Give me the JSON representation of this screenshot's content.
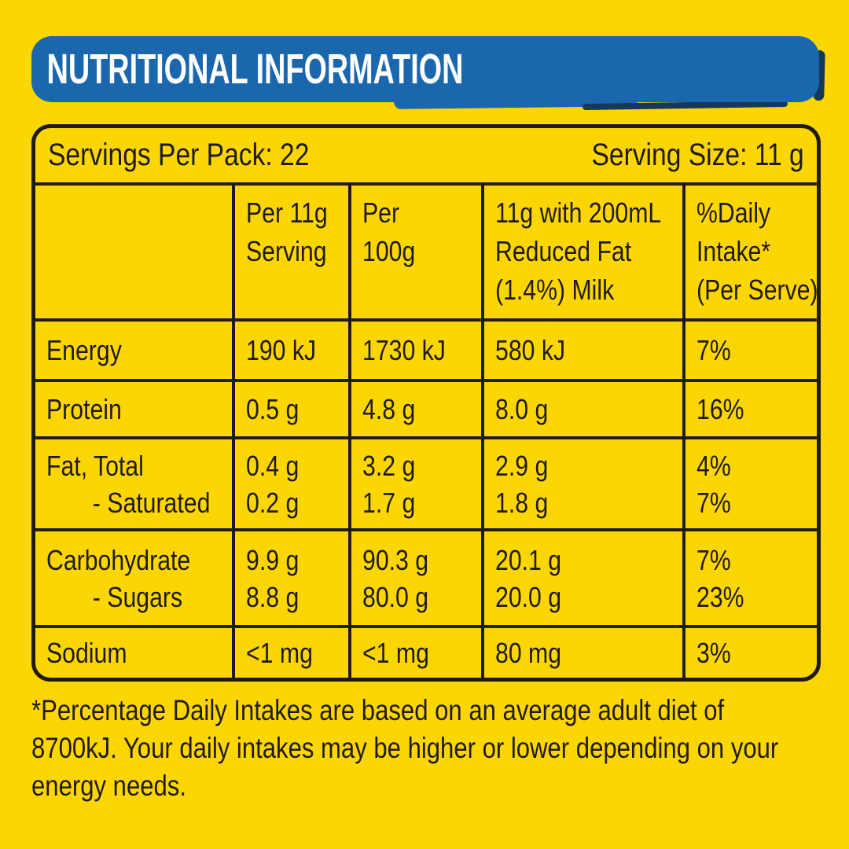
{
  "colors": {
    "yellow": "#FCD603",
    "blue": "#1A67AE",
    "navy": "#16385A",
    "ink": "#201B12",
    "banner_text": "#FFFFFF"
  },
  "banner": {
    "title": "NUTRITIONAL INFORMATION"
  },
  "summary": {
    "servings_per_pack": "Servings Per Pack: 22",
    "serving_size": "Serving Size: 11 g"
  },
  "columns": {
    "nutrient": {
      "lines": [
        ""
      ]
    },
    "per_serving": {
      "lines": [
        "Per 11g",
        "Serving"
      ]
    },
    "per_100g": {
      "lines": [
        "Per",
        "100g"
      ]
    },
    "with_milk": {
      "lines": [
        "11g with 200mL",
        "Reduced Fat",
        "(1.4%) Milk"
      ]
    },
    "daily_intake": {
      "lines": [
        "%Daily",
        "Intake*",
        "(Per Serve)"
      ]
    }
  },
  "rows": [
    {
      "label": {
        "lines": [
          "Energy"
        ]
      },
      "per_serving": {
        "lines": [
          "190 kJ"
        ]
      },
      "per_100g": {
        "lines": [
          "1730 kJ"
        ]
      },
      "with_milk": {
        "lines": [
          "580 kJ"
        ]
      },
      "daily_intake": {
        "lines": [
          "7%"
        ]
      }
    },
    {
      "label": {
        "lines": [
          "Protein"
        ]
      },
      "per_serving": {
        "lines": [
          "0.5 g"
        ]
      },
      "per_100g": {
        "lines": [
          "4.8 g"
        ]
      },
      "with_milk": {
        "lines": [
          "8.0 g"
        ]
      },
      "daily_intake": {
        "lines": [
          "16%"
        ]
      }
    },
    {
      "label": {
        "lines": [
          "Fat, Total",
          "- Saturated"
        ]
      },
      "per_serving": {
        "lines": [
          "0.4 g",
          "0.2 g"
        ]
      },
      "per_100g": {
        "lines": [
          "3.2 g",
          "1.7 g"
        ]
      },
      "with_milk": {
        "lines": [
          "2.9 g",
          "1.8 g"
        ]
      },
      "daily_intake": {
        "lines": [
          "4%",
          "7%"
        ]
      }
    },
    {
      "label": {
        "lines": [
          "Carbohydrate",
          "- Sugars"
        ]
      },
      "per_serving": {
        "lines": [
          "9.9 g",
          "8.8 g"
        ]
      },
      "per_100g": {
        "lines": [
          "90.3 g",
          "80.0 g"
        ]
      },
      "with_milk": {
        "lines": [
          "20.1 g",
          "20.0 g"
        ]
      },
      "daily_intake": {
        "lines": [
          "7%",
          "23%"
        ]
      }
    },
    {
      "label": {
        "lines": [
          "Sodium"
        ]
      },
      "per_serving": {
        "lines": [
          "<1 mg"
        ]
      },
      "per_100g": {
        "lines": [
          "<1 mg"
        ]
      },
      "with_milk": {
        "lines": [
          "80 mg"
        ]
      },
      "daily_intake": {
        "lines": [
          "3%"
        ]
      }
    }
  ],
  "footnote": {
    "text": "*Percentage Daily Intakes are based on an average adult diet of 8700kJ. Your daily intakes may be higher or lower depending on your energy needs."
  }
}
